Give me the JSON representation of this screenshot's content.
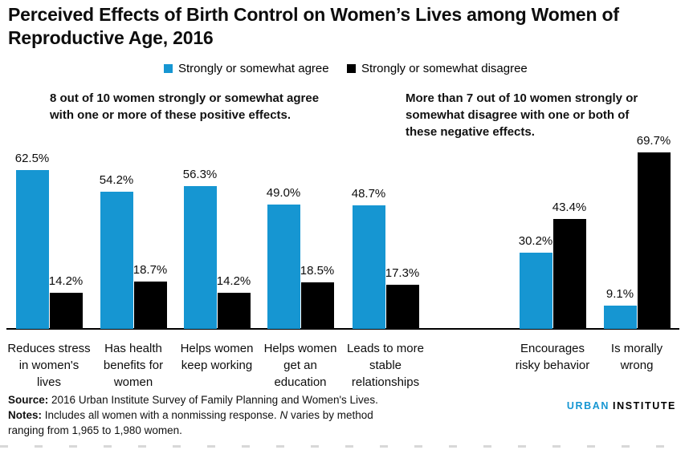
{
  "header": {
    "title_lines": [
      "Perceived Effects of Birth Control on Women’s Lives among Women of",
      "Reproductive Age, 2016"
    ]
  },
  "legend": {
    "items": [
      {
        "label": "Strongly or somewhat agree",
        "color": "#1696d2"
      },
      {
        "label": "Strongly or somewhat disagree",
        "color": "#000000"
      }
    ]
  },
  "annotations": {
    "left": "8 out of 10 women strongly or somewhat agree with one or more of these positive effects.",
    "right": "More than 7 out of 10 women strongly or somewhat disagree with one or both of these negative effects."
  },
  "chart_data": {
    "type": "bar",
    "title": "Perceived Effects of Birth Control on Women’s Lives among Women of Reproductive Age, 2016",
    "categories": [
      "Reduces stress in women's lives",
      "Has health benefits for women",
      "Helps women keep working",
      "Helps women get an education",
      "Leads to more stable relationships",
      "Encourages risky behavior",
      "Is morally wrong"
    ],
    "series": [
      {
        "name": "Strongly or somewhat agree",
        "color": "#1696d2",
        "values": [
          62.5,
          54.2,
          56.3,
          49.0,
          48.7,
          30.2,
          9.1
        ]
      },
      {
        "name": "Strongly or somewhat disagree",
        "color": "#000000",
        "values": [
          14.2,
          18.7,
          14.2,
          18.5,
          17.3,
          43.4,
          69.7
        ]
      }
    ],
    "value_label_format": "percent_1dp",
    "ylim": [
      0,
      75
    ],
    "grid": false,
    "legend_position": "top",
    "group_gap_after_category_index": 4
  },
  "footer": {
    "source_label": "Source:",
    "source_text": "2016 Urban Institute Survey of Family Planning and Women's Lives.",
    "notes_label": "Notes:",
    "notes_before_n": "Includes all women with a nonmissing response.",
    "notes_n": "N",
    "notes_after_n": "varies by method",
    "notes_line2": "ranging from 1,965 to 1,980 women.",
    "logo": {
      "urban": "URBAN",
      "institute": "INSTITUTE"
    }
  },
  "colors": {
    "accent_blue": "#1696d2",
    "bar_black": "#000000"
  }
}
